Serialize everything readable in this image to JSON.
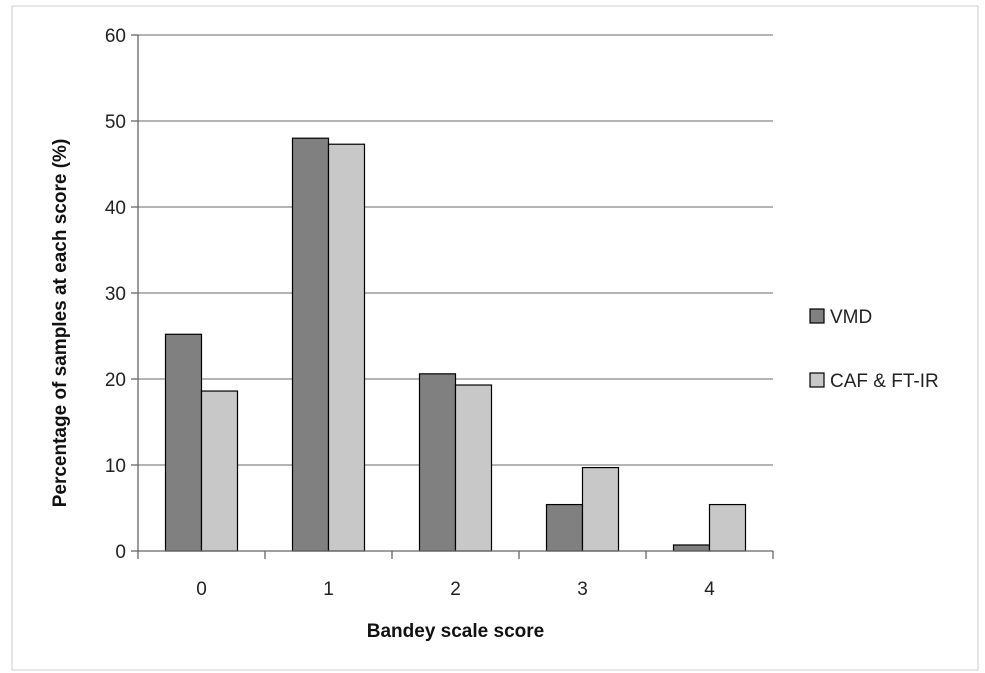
{
  "chart_data": {
    "type": "bar",
    "categories": [
      "0",
      "1",
      "2",
      "3",
      "4"
    ],
    "series": [
      {
        "name": "VMD",
        "values": [
          25.2,
          48.0,
          20.6,
          5.4,
          0.7
        ],
        "color": "#808080"
      },
      {
        "name": "CAF & FT-IR",
        "values": [
          18.6,
          47.3,
          19.3,
          9.7,
          5.4
        ],
        "color": "#c8c8c8"
      }
    ],
    "xlabel": "Bandey scale score",
    "ylabel": "Percentage of samples at each score (%)",
    "ylim": [
      0,
      60
    ],
    "yticks": [
      "0",
      "10",
      "20",
      "30",
      "40",
      "50",
      "60"
    ],
    "grid": true,
    "legend": "right",
    "colors": {
      "gridline": "#888888",
      "axis": "#666666",
      "frame": "#cccccc"
    }
  }
}
